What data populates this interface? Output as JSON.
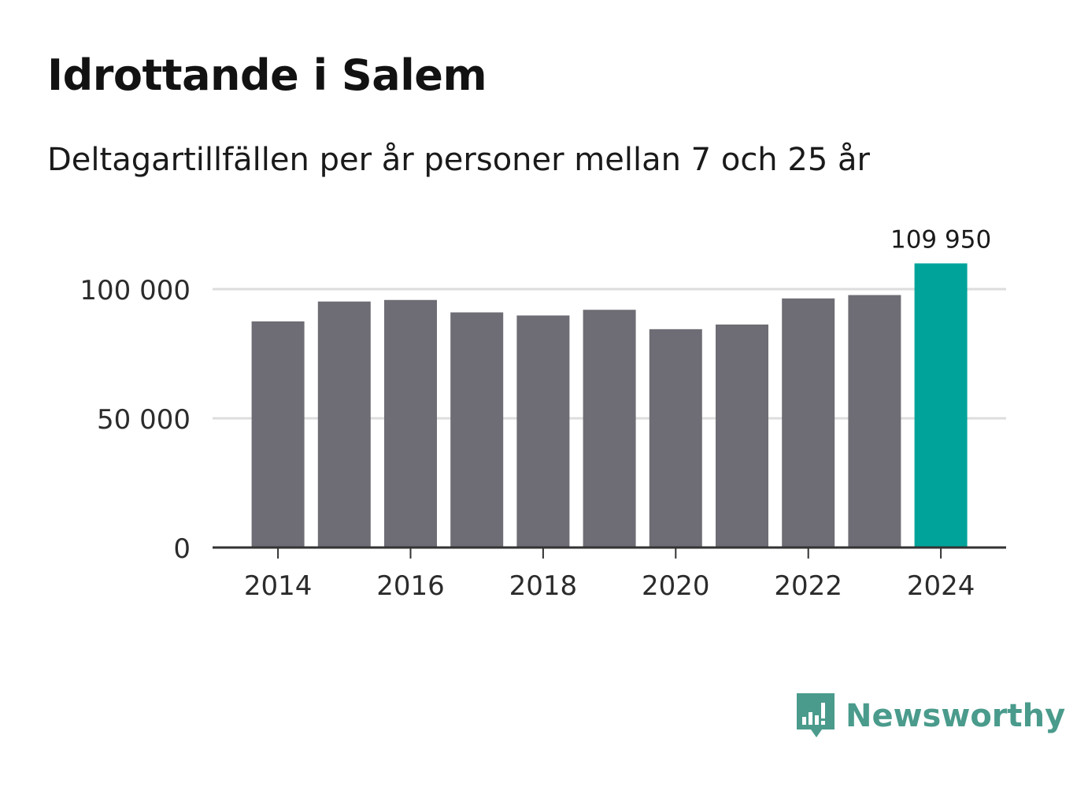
{
  "title": "Idrottande i Salem",
  "subtitle": "Deltagartillfällen per år personer mellan 7 och 25 år",
  "brand": {
    "name": "Newsworthy",
    "color": "#4a9b8c"
  },
  "colors": {
    "bar": "#6e6d75",
    "highlight": "#00a39a",
    "grid": "#dddddd",
    "axis": "#333333"
  },
  "chart_data": {
    "type": "bar",
    "title": "Idrottande i Salem",
    "subtitle": "Deltagartillfällen per år personer mellan 7 och 25 år",
    "xlabel": "",
    "ylabel": "",
    "categories": [
      "2014",
      "2015",
      "2016",
      "2017",
      "2018",
      "2019",
      "2020",
      "2021",
      "2022",
      "2023",
      "2024"
    ],
    "values": [
      87500,
      95200,
      95800,
      91000,
      89800,
      92000,
      84500,
      86300,
      96400,
      97700,
      109950
    ],
    "highlight_index": 10,
    "highlight_label": "109 950",
    "ylim": [
      0,
      100000
    ],
    "yticks": [
      0,
      50000,
      100000
    ],
    "ytick_labels": [
      "0",
      "50 000",
      "100 000"
    ],
    "xtick_labels": [
      "2014",
      "2016",
      "2018",
      "2020",
      "2022",
      "2024"
    ],
    "grid": true
  }
}
